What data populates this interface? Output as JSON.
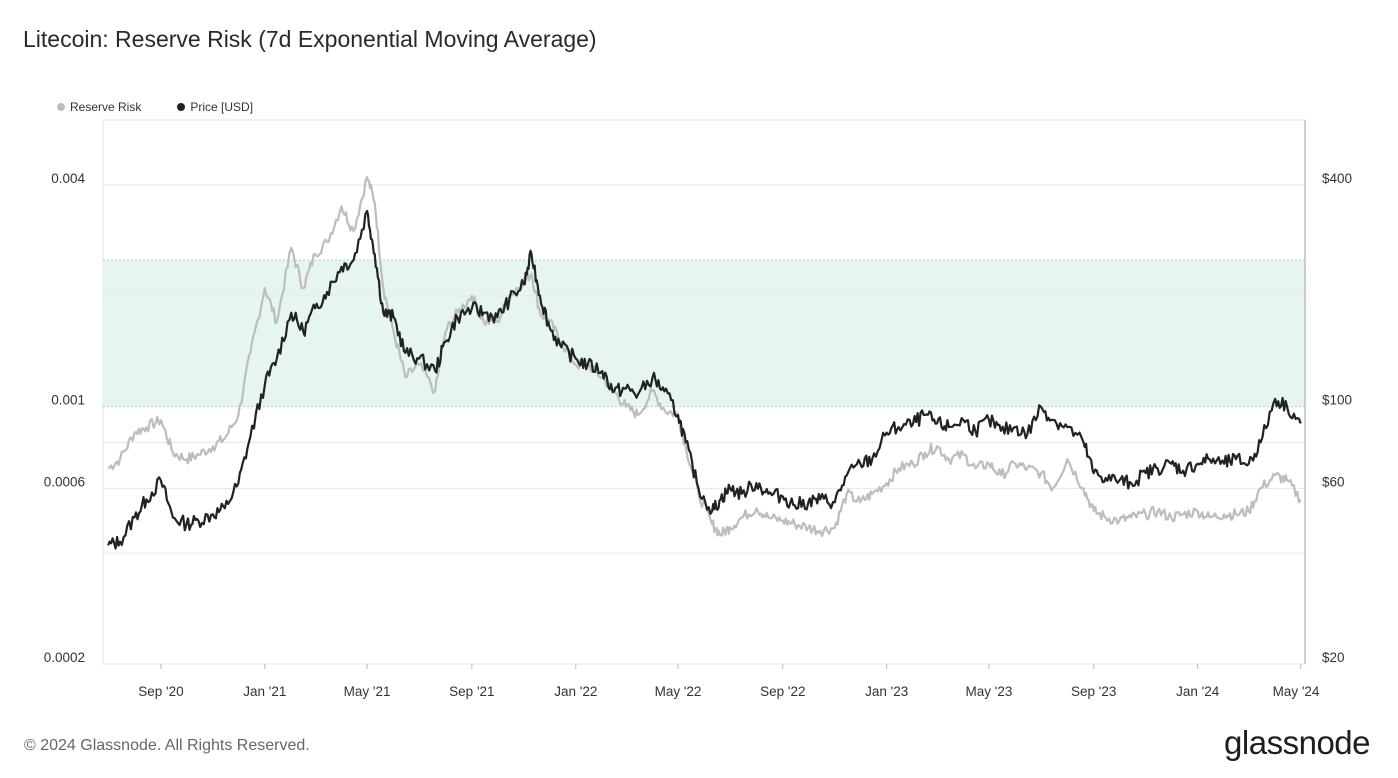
{
  "title": "Litecoin: Reserve Risk (7d Exponential Moving Average)",
  "footer": "© 2024 Glassnode. All Rights Reserved.",
  "brand": "glassnode",
  "colors": {
    "reserve_risk": "#bdbdbd",
    "price": "#222222",
    "zone": "#e6f6ee",
    "zone_edge": "#9fd9bd"
  },
  "chart_data": {
    "type": "line",
    "title": "Litecoin: Reserve Risk (7d Exponential Moving Average)",
    "legend_position": "top-left",
    "grid": true,
    "x_ticks": [
      "Sep '20",
      "Jan '21",
      "May '21",
      "Sep '21",
      "Jan '22",
      "May '22",
      "Sep '22",
      "Jan '23",
      "May '23",
      "Sep '23",
      "Jan '24",
      "May '24"
    ],
    "y_left": {
      "label": "",
      "scale": "log",
      "ticks": [
        "0.004",
        "0.001",
        "0.0006",
        "0.0002"
      ],
      "tick_values": [
        0.004,
        0.001,
        0.0006,
        0.0002
      ],
      "range": [
        0.0002,
        0.0055
      ]
    },
    "y_right": {
      "label": "",
      "scale": "log",
      "ticks": [
        "$400",
        "$100",
        "$60",
        "$20"
      ],
      "tick_values": [
        400,
        100,
        60,
        20
      ],
      "range": [
        19,
        560
      ]
    },
    "highlight_band": {
      "axis": "left",
      "from": 0.001,
      "to": 0.0025
    },
    "x": [
      "2020-07-01",
      "2020-07-15",
      "2020-08-01",
      "2020-08-15",
      "2020-09-01",
      "2020-09-15",
      "2020-10-01",
      "2020-10-15",
      "2020-11-01",
      "2020-11-15",
      "2020-12-01",
      "2020-12-15",
      "2021-01-01",
      "2021-01-15",
      "2021-02-01",
      "2021-02-15",
      "2021-03-01",
      "2021-03-15",
      "2021-04-01",
      "2021-04-15",
      "2021-05-01",
      "2021-05-10",
      "2021-05-20",
      "2021-06-01",
      "2021-06-15",
      "2021-07-01",
      "2021-07-20",
      "2021-08-01",
      "2021-08-15",
      "2021-09-01",
      "2021-09-15",
      "2021-10-01",
      "2021-10-15",
      "2021-11-01",
      "2021-11-10",
      "2021-11-20",
      "2021-12-01",
      "2021-12-15",
      "2022-01-01",
      "2022-01-15",
      "2022-02-01",
      "2022-02-15",
      "2022-03-01",
      "2022-03-15",
      "2022-04-01",
      "2022-04-15",
      "2022-05-01",
      "2022-05-10",
      "2022-05-25",
      "2022-06-10",
      "2022-06-20",
      "2022-07-01",
      "2022-07-15",
      "2022-08-01",
      "2022-08-15",
      "2022-09-01",
      "2022-09-15",
      "2022-10-01",
      "2022-10-15",
      "2022-11-01",
      "2022-11-15",
      "2022-12-01",
      "2022-12-15",
      "2023-01-01",
      "2023-01-15",
      "2023-02-01",
      "2023-02-15",
      "2023-03-01",
      "2023-03-15",
      "2023-04-01",
      "2023-04-15",
      "2023-05-01",
      "2023-05-15",
      "2023-06-01",
      "2023-06-15",
      "2023-07-01",
      "2023-07-15",
      "2023-08-01",
      "2023-08-20",
      "2023-09-01",
      "2023-09-15",
      "2023-10-01",
      "2023-10-15",
      "2023-11-01",
      "2023-11-15",
      "2023-12-01",
      "2023-12-15",
      "2024-01-01",
      "2024-01-15",
      "2024-02-01",
      "2024-02-15",
      "2024-03-01",
      "2024-03-15",
      "2024-04-01",
      "2024-04-15",
      "2024-05-01"
    ],
    "series": [
      {
        "name": "Reserve Risk",
        "axis": "left",
        "values": [
          0.00068,
          0.00072,
          0.00085,
          0.00088,
          0.00092,
          0.00075,
          0.00072,
          0.00074,
          0.00078,
          0.00082,
          0.00095,
          0.0014,
          0.0021,
          0.0017,
          0.0027,
          0.0021,
          0.0026,
          0.0028,
          0.0035,
          0.003,
          0.0042,
          0.0036,
          0.0021,
          0.0016,
          0.0012,
          0.0013,
          0.0011,
          0.0016,
          0.0018,
          0.002,
          0.0017,
          0.0017,
          0.002,
          0.0022,
          0.0023,
          0.0018,
          0.0017,
          0.0015,
          0.0013,
          0.0013,
          0.0012,
          0.0011,
          0.001,
          0.00095,
          0.0011,
          0.00098,
          0.00095,
          0.00078,
          0.00058,
          0.00048,
          0.00045,
          0.00047,
          0.0005,
          0.00053,
          0.0005,
          0.00049,
          0.00048,
          0.00047,
          0.00046,
          0.00047,
          0.00058,
          0.00055,
          0.00058,
          0.00062,
          0.00068,
          0.0007,
          0.00075,
          0.00078,
          0.00072,
          0.00074,
          0.00068,
          0.0007,
          0.00065,
          0.0007,
          0.00068,
          0.00066,
          0.0006,
          0.00072,
          0.0006,
          0.00052,
          0.0005,
          0.00049,
          0.0005,
          0.00051,
          0.00052,
          0.0005,
          0.00051,
          0.00052,
          0.0005,
          0.00051,
          0.00051,
          0.00052,
          0.0006,
          0.00065,
          0.00063,
          0.00056
        ]
      },
      {
        "name": "Price [USD]",
        "axis": "right",
        "values": [
          42,
          43,
          50,
          56,
          63,
          50,
          48,
          49,
          51,
          53,
          62,
          83,
          115,
          135,
          180,
          160,
          185,
          205,
          240,
          250,
          340,
          260,
          180,
          175,
          140,
          135,
          125,
          150,
          175,
          185,
          180,
          175,
          195,
          215,
          260,
          200,
          165,
          145,
          135,
          130,
          125,
          110,
          112,
          108,
          120,
          110,
          95,
          80,
          60,
          52,
          56,
          60,
          58,
          62,
          58,
          57,
          54,
          55,
          56,
          55,
          65,
          70,
          72,
          85,
          88,
          90,
          95,
          90,
          88,
          92,
          86,
          92,
          86,
          88,
          84,
          100,
          92,
          88,
          80,
          66,
          64,
          63,
          62,
          66,
          68,
          70,
          67,
          70,
          72,
          70,
          72,
          70,
          80,
          105,
          100,
          90
        ]
      }
    ]
  }
}
